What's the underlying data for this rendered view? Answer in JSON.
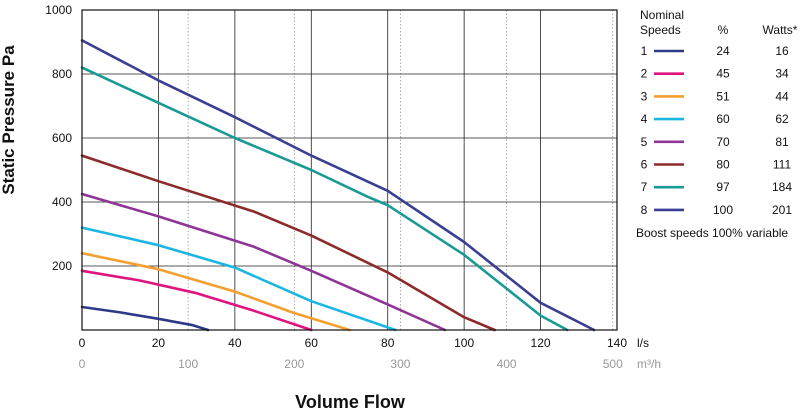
{
  "chart_data": {
    "type": "line",
    "ylabel": "Static Pressure Pa",
    "xlabel": "Volume Flow",
    "x_unit_primary": "l/s",
    "x_unit_secondary": "m³/h",
    "xlim": [
      0,
      140
    ],
    "ylim": [
      0,
      1000
    ],
    "x_ticks": [
      0,
      20,
      40,
      60,
      80,
      100,
      120,
      140
    ],
    "x_ticks_secondary": [
      0,
      100,
      200,
      300,
      400,
      500
    ],
    "y_ticks": [
      200,
      400,
      600,
      800,
      1000
    ],
    "grid": true,
    "legend": {
      "placement": "right",
      "headers": {
        "speed": "Nominal\nSpeeds",
        "percent": "%",
        "watts": "Watts*"
      },
      "footnote": "Boost speeds 100% variable"
    },
    "series": [
      {
        "name": "1",
        "percent": "24",
        "watts": "16",
        "color": "#2e3a87",
        "points": [
          [
            0,
            72
          ],
          [
            10,
            55
          ],
          [
            20,
            35
          ],
          [
            29,
            15
          ],
          [
            33,
            0
          ]
        ]
      },
      {
        "name": "2",
        "percent": "45",
        "watts": "34",
        "color": "#e0147f",
        "points": [
          [
            0,
            185
          ],
          [
            15,
            155
          ],
          [
            30,
            115
          ],
          [
            45,
            60
          ],
          [
            60,
            0
          ]
        ]
      },
      {
        "name": "3",
        "percent": "51",
        "watts": "44",
        "color": "#f4a030",
        "points": [
          [
            0,
            240
          ],
          [
            20,
            190
          ],
          [
            40,
            120
          ],
          [
            55,
            55
          ],
          [
            70,
            0
          ]
        ]
      },
      {
        "name": "4",
        "percent": "60",
        "watts": "62",
        "color": "#1cb6e3",
        "points": [
          [
            0,
            320
          ],
          [
            20,
            265
          ],
          [
            40,
            195
          ],
          [
            60,
            90
          ],
          [
            82,
            0
          ]
        ]
      },
      {
        "name": "5",
        "percent": "70",
        "watts": "81",
        "color": "#8e3595",
        "points": [
          [
            0,
            425
          ],
          [
            20,
            355
          ],
          [
            45,
            260
          ],
          [
            60,
            185
          ],
          [
            80,
            80
          ],
          [
            95,
            0
          ]
        ]
      },
      {
        "name": "6",
        "percent": "80",
        "watts": "111",
        "color": "#8c2b2b",
        "points": [
          [
            0,
            545
          ],
          [
            20,
            465
          ],
          [
            45,
            370
          ],
          [
            60,
            295
          ],
          [
            80,
            180
          ],
          [
            100,
            40
          ],
          [
            108,
            0
          ]
        ]
      },
      {
        "name": "7",
        "percent": "97",
        "watts": "184",
        "color": "#1a9a95",
        "points": [
          [
            0,
            820
          ],
          [
            20,
            710
          ],
          [
            40,
            600
          ],
          [
            60,
            500
          ],
          [
            75,
            415
          ],
          [
            80,
            390
          ],
          [
            100,
            235
          ],
          [
            120,
            45
          ],
          [
            127,
            0
          ]
        ]
      },
      {
        "name": "8",
        "percent": "100",
        "watts": "201",
        "color": "#3a3f93",
        "points": [
          [
            0,
            905
          ],
          [
            20,
            780
          ],
          [
            40,
            665
          ],
          [
            60,
            545
          ],
          [
            80,
            435
          ],
          [
            100,
            275
          ],
          [
            120,
            85
          ],
          [
            134,
            0
          ]
        ]
      }
    ]
  }
}
